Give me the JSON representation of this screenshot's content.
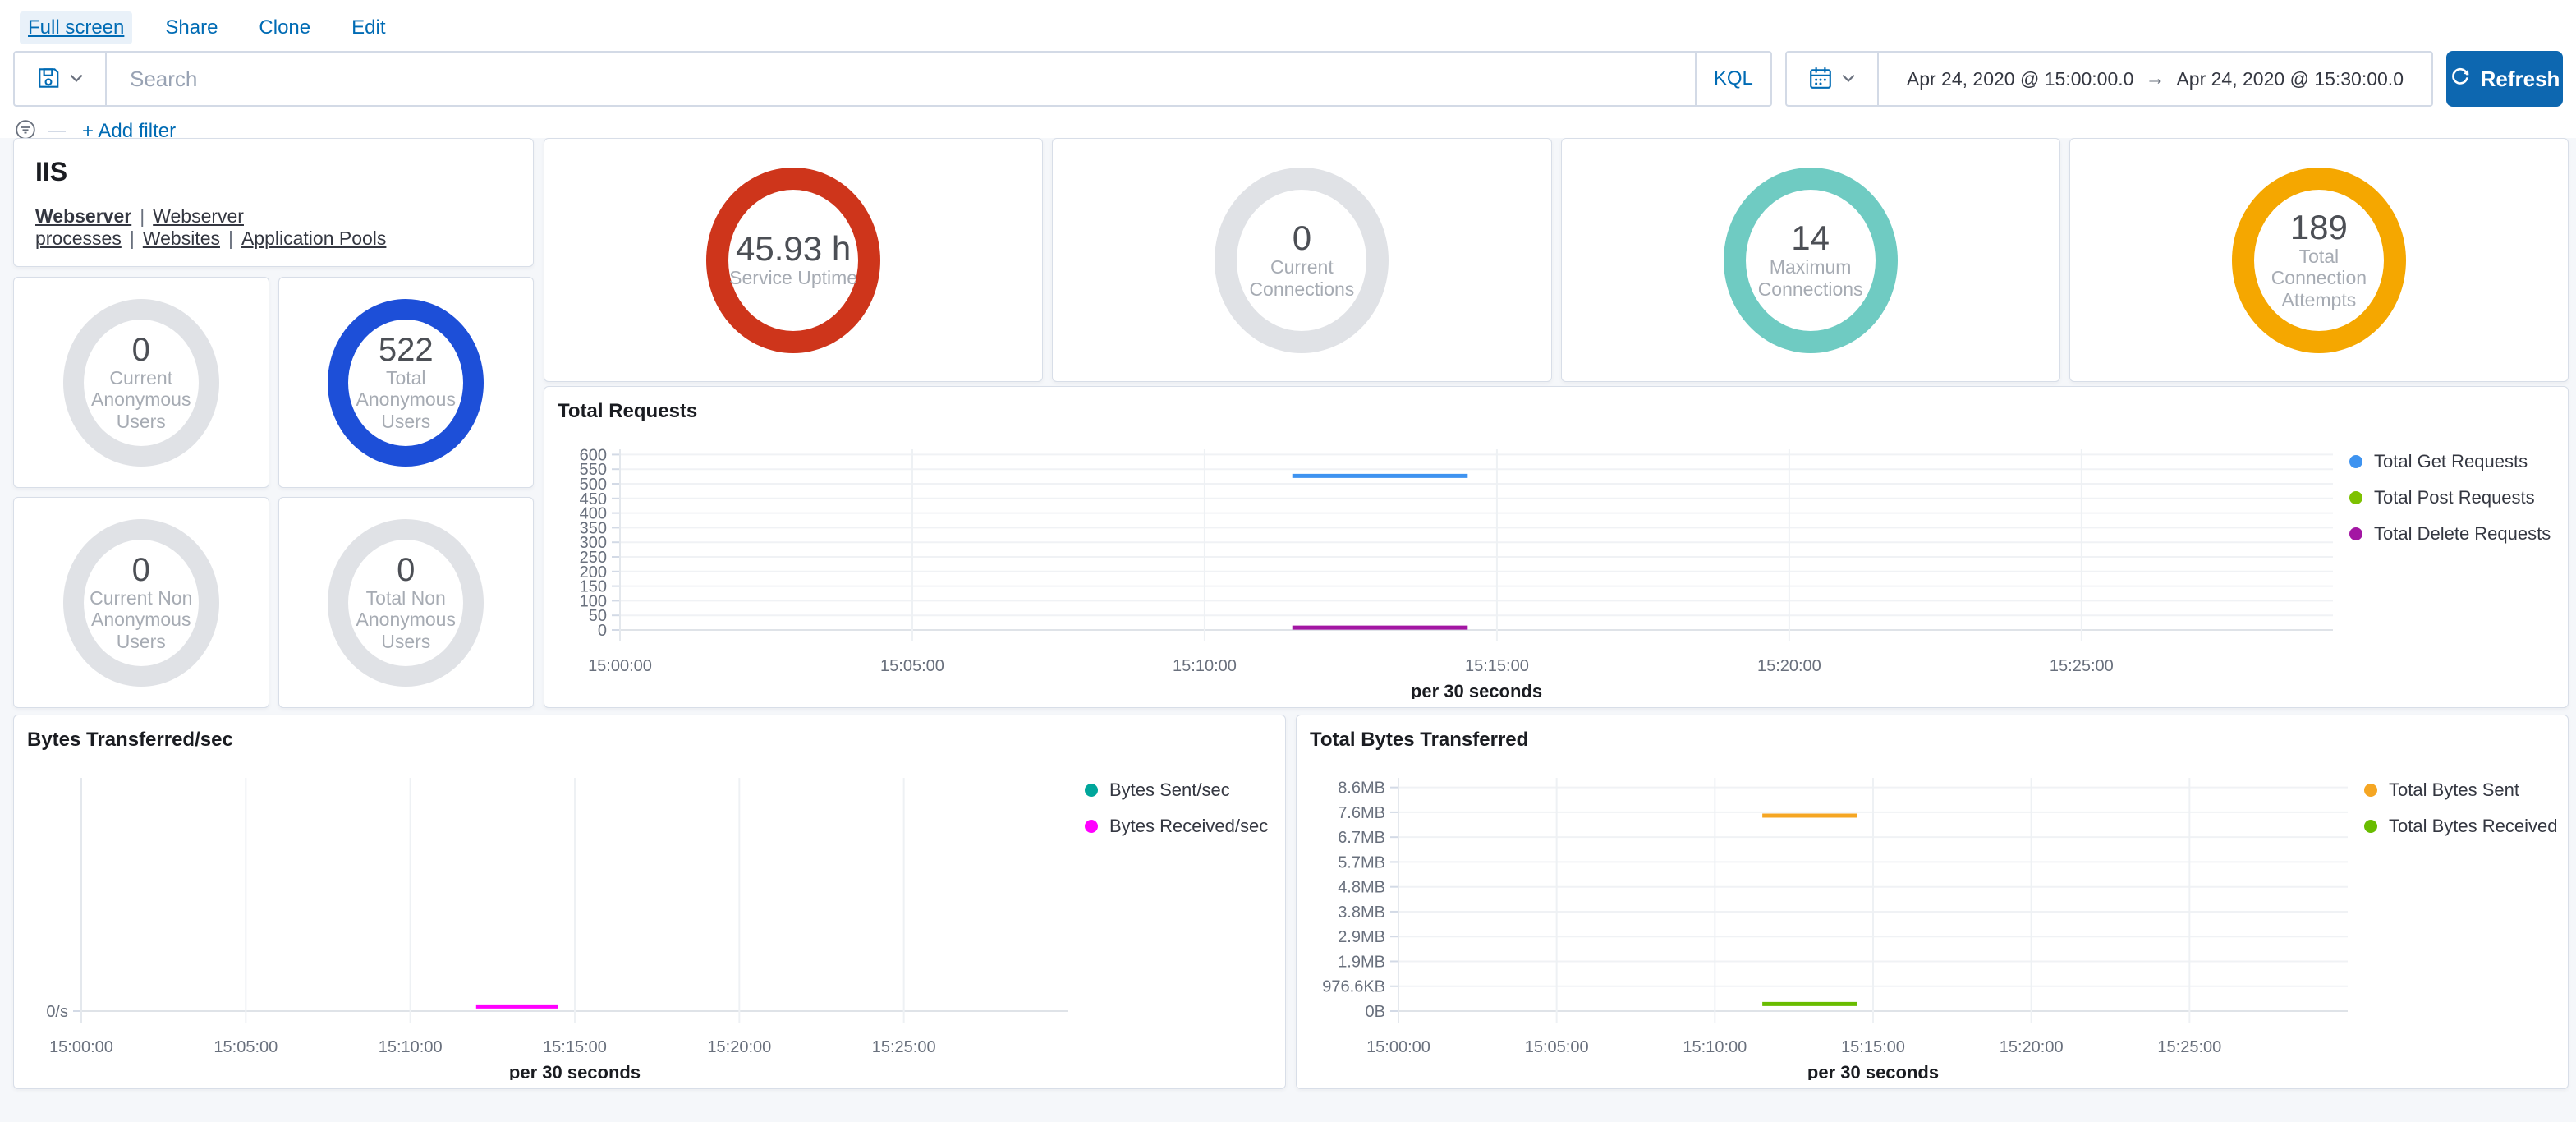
{
  "header": {
    "nav": [
      {
        "label": "Full screen",
        "active": true
      },
      {
        "label": "Share",
        "active": false
      },
      {
        "label": "Clone",
        "active": false
      },
      {
        "label": "Edit",
        "active": false
      }
    ],
    "query_bar": {
      "search_placeholder": "Search",
      "language_badge": "KQL"
    },
    "time_picker": {
      "start": "Apr 24, 2020 @ 15:00:00.0",
      "arrow": "→",
      "end": "Apr 24, 2020 @ 15:30:00.0",
      "refresh_label": "Refresh"
    },
    "filter_bar": {
      "add_filter_label": "+ Add filter"
    }
  },
  "markdown_panel": {
    "title": "IIS",
    "separator": "|",
    "links": [
      {
        "label": "Webserver",
        "bold": true
      },
      {
        "label": "Webserver processes",
        "bold": false
      },
      {
        "label": "Websites",
        "bold": false
      },
      {
        "label": "Application Pools",
        "bold": false
      }
    ]
  },
  "gauges": {
    "top_row": [
      {
        "value": "45.93 h",
        "label": "Service Uptime",
        "ring_color": "#CE351B"
      },
      {
        "value": "0",
        "label": "Current Connections",
        "ring_color": "#E0E2E6"
      },
      {
        "value": "14",
        "label": "Maximum Connections",
        "ring_color": "#6FCBC2"
      },
      {
        "value": "189",
        "label": "Total Connection Attempts",
        "ring_color": "#F5A700"
      }
    ],
    "left_grid": [
      {
        "value": "0",
        "label": "Current Anonymous Users",
        "ring_color": "#E0E2E6"
      },
      {
        "value": "522",
        "label": "Total Anonymous Users",
        "ring_color": "#1D4FD8"
      },
      {
        "value": "0",
        "label": "Current Non Anonymous Users",
        "ring_color": "#E0E2E6"
      },
      {
        "value": "0",
        "label": "Total Non Anonymous Users",
        "ring_color": "#E0E2E6"
      }
    ]
  },
  "chart_data": [
    {
      "type": "line",
      "title": "Total Requests",
      "xlabel": "per 30 seconds",
      "legend_position": "right",
      "grid": true,
      "x_domain_minutes": [
        0,
        29.3
      ],
      "x_ticks": [
        {
          "label": "15:00:00",
          "min": 0
        },
        {
          "label": "15:05:00",
          "min": 5
        },
        {
          "label": "15:10:00",
          "min": 10
        },
        {
          "label": "15:15:00",
          "min": 15
        },
        {
          "label": "15:20:00",
          "min": 20
        },
        {
          "label": "15:25:00",
          "min": 25
        }
      ],
      "ylim": [
        0,
        618
      ],
      "y_ticks": [
        {
          "label": "0",
          "value": 0
        },
        {
          "label": "50",
          "value": 50
        },
        {
          "label": "100",
          "value": 100
        },
        {
          "label": "150",
          "value": 150
        },
        {
          "label": "200",
          "value": 200
        },
        {
          "label": "250",
          "value": 250
        },
        {
          "label": "300",
          "value": 300
        },
        {
          "label": "350",
          "value": 350
        },
        {
          "label": "400",
          "value": 400
        },
        {
          "label": "450",
          "value": 450
        },
        {
          "label": "500",
          "value": 500
        },
        {
          "label": "550",
          "value": 550
        },
        {
          "label": "600",
          "value": 600
        }
      ],
      "series": [
        {
          "name": "Total Get Requests",
          "color": "#3E93F0",
          "points": [
            {
              "min": 11.5,
              "value": 527
            },
            {
              "min": 14.5,
              "value": 527
            }
          ]
        },
        {
          "name": "Total Post Requests",
          "color": "#7DC101",
          "points": []
        },
        {
          "name": "Total Delete Requests",
          "color": "#A316A3",
          "points": [
            {
              "min": 11.5,
              "value": 8
            },
            {
              "min": 14.5,
              "value": 8
            }
          ]
        }
      ]
    },
    {
      "type": "line",
      "title": "Bytes Transferred/sec",
      "xlabel": "per 30 seconds",
      "legend_position": "right",
      "grid": true,
      "x_domain_minutes": [
        0,
        30
      ],
      "x_ticks": [
        {
          "label": "15:00:00",
          "min": 0
        },
        {
          "label": "15:05:00",
          "min": 5
        },
        {
          "label": "15:10:00",
          "min": 10
        },
        {
          "label": "15:15:00",
          "min": 15
        },
        {
          "label": "15:20:00",
          "min": 20
        },
        {
          "label": "15:25:00",
          "min": 25
        }
      ],
      "ylim": [
        0,
        1
      ],
      "y_ticks": [
        {
          "label": "0/s",
          "value": 0
        }
      ],
      "series": [
        {
          "name": "Bytes Sent/sec",
          "color": "#00A69B",
          "points": []
        },
        {
          "name": "Bytes Received/sec",
          "color": "#FF00FF",
          "points": [
            {
              "min": 12,
              "value": 0.02
            },
            {
              "min": 14.5,
              "value": 0.02
            }
          ]
        }
      ]
    },
    {
      "type": "line",
      "title": "Total Bytes Transferred",
      "xlabel": "per 30 seconds",
      "legend_position": "right",
      "grid": true,
      "x_domain_minutes": [
        0,
        30
      ],
      "x_ticks": [
        {
          "label": "15:00:00",
          "min": 0
        },
        {
          "label": "15:05:00",
          "min": 5
        },
        {
          "label": "15:10:00",
          "min": 10
        },
        {
          "label": "15:15:00",
          "min": 15
        },
        {
          "label": "15:20:00",
          "min": 20
        },
        {
          "label": "15:25:00",
          "min": 25
        }
      ],
      "ylim": [
        0,
        8.95
      ],
      "y_units": "MB",
      "y_ticks": [
        {
          "label": "0B",
          "value": 0
        },
        {
          "label": "976.6KB",
          "value": 0.9537
        },
        {
          "label": "1.9MB",
          "value": 1.9073
        },
        {
          "label": "2.9MB",
          "value": 2.861
        },
        {
          "label": "3.8MB",
          "value": 3.8147
        },
        {
          "label": "4.8MB",
          "value": 4.7684
        },
        {
          "label": "5.7MB",
          "value": 5.722
        },
        {
          "label": "6.7MB",
          "value": 6.6757
        },
        {
          "label": "7.6MB",
          "value": 7.6294
        },
        {
          "label": "8.6MB",
          "value": 8.583
        }
      ],
      "series": [
        {
          "name": "Total Bytes Sent",
          "color": "#F5A623",
          "points": [
            {
              "min": 11.5,
              "value": 7.5
            },
            {
              "min": 14.5,
              "value": 7.5
            }
          ]
        },
        {
          "name": "Total Bytes Received",
          "color": "#69BC00",
          "points": [
            {
              "min": 11.5,
              "value": 0.27
            },
            {
              "min": 14.5,
              "value": 0.27
            }
          ]
        }
      ]
    }
  ]
}
